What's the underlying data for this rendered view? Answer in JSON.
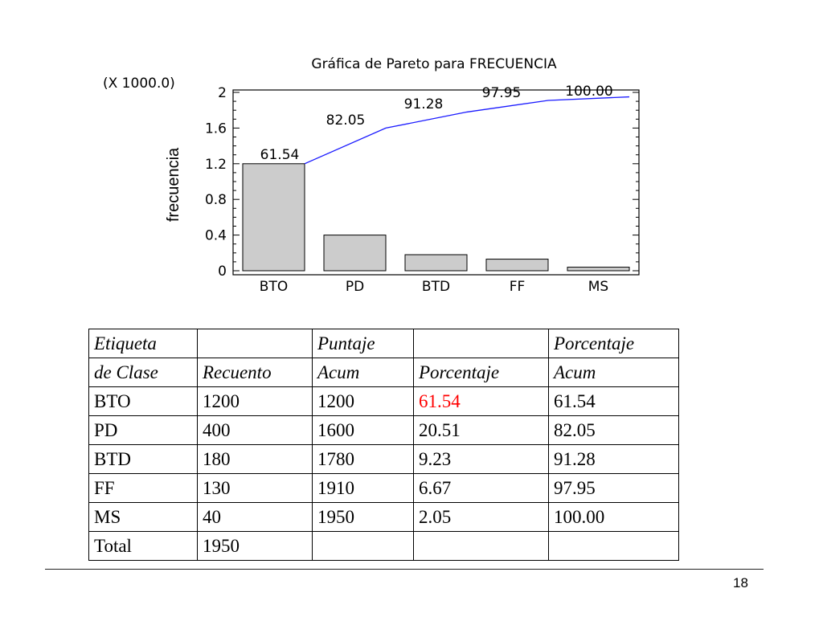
{
  "chart_data": {
    "type": "bar",
    "title": "Gráfica de Pareto para FRECUENCIA",
    "scale_note": "(X 1000.0)",
    "ylabel": "frecuencia",
    "categories": [
      "BTO",
      "PD",
      "BTD",
      "FF",
      "MS"
    ],
    "values": [
      1.2,
      0.4,
      0.18,
      0.13,
      0.04
    ],
    "cumulative_labels": [
      "61.54",
      "82.05",
      "91.28",
      "97.95",
      "100.00"
    ],
    "cumulative_values": [
      1.2,
      1.6,
      1.78,
      1.91,
      1.95
    ],
    "yticks": [
      "0",
      "0.4",
      "0.8",
      "1.2",
      "1.6",
      "2"
    ],
    "ylim": [
      0,
      2
    ],
    "bar_color": "#cccccc",
    "line_color": "#1a1aff"
  },
  "table": {
    "header1": [
      "Etiqueta",
      "",
      "Puntaje",
      "",
      "Porcentaje"
    ],
    "header2": [
      "de Clase",
      "Recuento",
      "Acum",
      "Porcentaje",
      "Acum"
    ],
    "rows": [
      [
        "BTO",
        "1200",
        "1200",
        "61.54",
        "61.54"
      ],
      [
        "PD",
        "400",
        "1600",
        "20.51",
        "82.05"
      ],
      [
        "BTD",
        "180",
        "1780",
        "9.23",
        "91.28"
      ],
      [
        "FF",
        "130",
        "1910",
        "6.67",
        "97.95"
      ],
      [
        "MS",
        "40",
        "1950",
        "2.05",
        "100.00"
      ],
      [
        "Total",
        "1950",
        "",
        "",
        ""
      ]
    ],
    "highlight_color": "#ff0000"
  },
  "page_number": "18"
}
